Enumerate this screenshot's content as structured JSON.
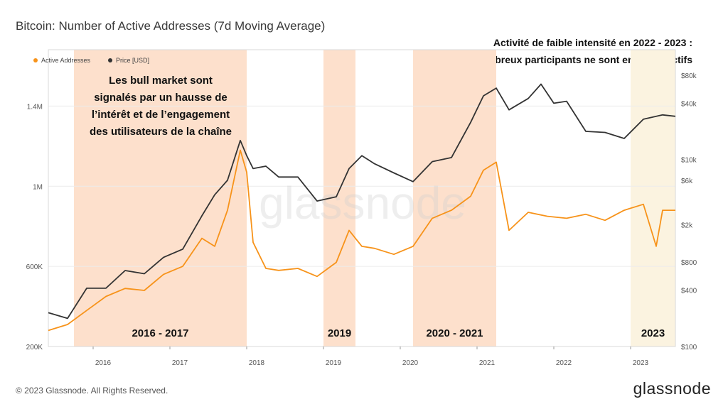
{
  "title": "Bitcoin: Number of Active Addresses (7d Moving Average)",
  "callout": {
    "line1": "Activité de faible intensité en 2022 - 2023 :",
    "line2": "de nombreux participants ne sont encore inactifs"
  },
  "annotation": {
    "lines": [
      "Les bull market sont",
      "signalés par un hausse de",
      "l’intérêt et de l’engagement",
      "des utilisateurs de la chaîne"
    ]
  },
  "footer": "© 2023 Glassnode. All Rights Reserved.",
  "brand": "glassnode",
  "watermark": "glassnode",
  "colors": {
    "active_addresses": "#f7931a",
    "price": "#333333",
    "bull_shade": "#fde0cc",
    "shade_2023": "#fbf3e0",
    "grid": "#ececec"
  },
  "chart_data": {
    "type": "line",
    "legend": [
      "Active Addresses",
      "Price [USD]"
    ],
    "legend_position": "top-left",
    "x_ticks": [
      "2016",
      "2017",
      "2018",
      "2019",
      "2020",
      "2021",
      "2022",
      "2023"
    ],
    "x_range": [
      "2015-06",
      "2023-08"
    ],
    "y_left": {
      "scale": "linear",
      "range": [
        200000,
        1600000
      ],
      "ticks": [
        200000,
        600000,
        1000000,
        1400000
      ],
      "tick_labels": [
        "200K",
        "600K",
        "1M",
        "1.4M"
      ]
    },
    "y_right": {
      "scale": "log",
      "range": [
        100,
        100000
      ],
      "ticks": [
        100,
        400,
        800,
        2000,
        6000,
        10000,
        40000,
        80000
      ],
      "tick_labels": [
        "$100",
        "$400",
        "$800",
        "$2k",
        "$6k",
        "$10k",
        "$40k",
        "$80k"
      ]
    },
    "shaded_periods": [
      {
        "label": "2016 - 2017",
        "start": "2015-10",
        "end": "2018-01",
        "kind": "bull"
      },
      {
        "label": "2019",
        "start": "2019-01",
        "end": "2019-06",
        "kind": "bull"
      },
      {
        "label": "2020 - 2021",
        "start": "2020-03",
        "end": "2021-04",
        "kind": "bull"
      },
      {
        "label": "2023",
        "start": "2023-01",
        "end": "2023-08",
        "kind": "2023"
      }
    ],
    "series": [
      {
        "name": "Active Addresses",
        "axis": "left",
        "points": [
          [
            "2015-06",
            280000
          ],
          [
            "2015-09",
            310000
          ],
          [
            "2015-12",
            380000
          ],
          [
            "2016-03",
            450000
          ],
          [
            "2016-06",
            490000
          ],
          [
            "2016-09",
            480000
          ],
          [
            "2016-12",
            560000
          ],
          [
            "2017-03",
            600000
          ],
          [
            "2017-06",
            740000
          ],
          [
            "2017-08",
            700000
          ],
          [
            "2017-10",
            880000
          ],
          [
            "2017-12",
            1180000
          ],
          [
            "2018-01",
            1070000
          ],
          [
            "2018-02",
            720000
          ],
          [
            "2018-04",
            590000
          ],
          [
            "2018-06",
            580000
          ],
          [
            "2018-09",
            590000
          ],
          [
            "2018-12",
            550000
          ],
          [
            "2019-03",
            620000
          ],
          [
            "2019-05",
            780000
          ],
          [
            "2019-07",
            700000
          ],
          [
            "2019-09",
            690000
          ],
          [
            "2019-12",
            660000
          ],
          [
            "2020-03",
            700000
          ],
          [
            "2020-06",
            840000
          ],
          [
            "2020-09",
            880000
          ],
          [
            "2020-12",
            950000
          ],
          [
            "2021-02",
            1080000
          ],
          [
            "2021-04",
            1120000
          ],
          [
            "2021-06",
            780000
          ],
          [
            "2021-09",
            870000
          ],
          [
            "2021-12",
            850000
          ],
          [
            "2022-03",
            840000
          ],
          [
            "2022-06",
            860000
          ],
          [
            "2022-09",
            830000
          ],
          [
            "2022-12",
            880000
          ],
          [
            "2023-03",
            910000
          ],
          [
            "2023-05",
            700000
          ],
          [
            "2023-06",
            880000
          ],
          [
            "2023-08",
            880000
          ]
        ]
      },
      {
        "name": "Price [USD]",
        "axis": "right",
        "points": [
          [
            "2015-06",
            230
          ],
          [
            "2015-09",
            200
          ],
          [
            "2015-12",
            420
          ],
          [
            "2016-03",
            420
          ],
          [
            "2016-06",
            650
          ],
          [
            "2016-09",
            600
          ],
          [
            "2016-12",
            900
          ],
          [
            "2017-03",
            1100
          ],
          [
            "2017-06",
            2500
          ],
          [
            "2017-08",
            4200
          ],
          [
            "2017-10",
            6000
          ],
          [
            "2017-12",
            16000
          ],
          [
            "2018-01",
            11000
          ],
          [
            "2018-02",
            8000
          ],
          [
            "2018-04",
            8500
          ],
          [
            "2018-06",
            6500
          ],
          [
            "2018-09",
            6500
          ],
          [
            "2018-12",
            3600
          ],
          [
            "2019-03",
            4000
          ],
          [
            "2019-05",
            8000
          ],
          [
            "2019-07",
            11000
          ],
          [
            "2019-09",
            9000
          ],
          [
            "2019-12",
            7200
          ],
          [
            "2020-03",
            5800
          ],
          [
            "2020-06",
            9500
          ],
          [
            "2020-09",
            10500
          ],
          [
            "2020-12",
            25000
          ],
          [
            "2021-02",
            48000
          ],
          [
            "2021-04",
            58000
          ],
          [
            "2021-06",
            34000
          ],
          [
            "2021-09",
            45000
          ],
          [
            "2021-11",
            64000
          ],
          [
            "2022-01",
            40000
          ],
          [
            "2022-03",
            42000
          ],
          [
            "2022-06",
            20000
          ],
          [
            "2022-09",
            19500
          ],
          [
            "2022-12",
            16800
          ],
          [
            "2023-03",
            27000
          ],
          [
            "2023-06",
            30000
          ],
          [
            "2023-08",
            29000
          ]
        ]
      }
    ]
  }
}
